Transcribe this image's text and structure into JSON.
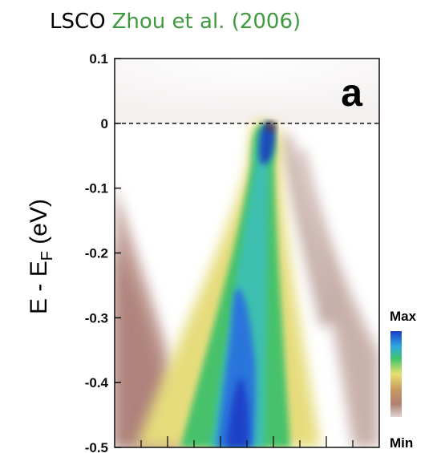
{
  "title": {
    "main": "LSCO",
    "sub": "Zhou et al. (2006)"
  },
  "chart_data": {
    "type": "heatmap",
    "ylabel": "E - E",
    "ylabel_sub": "F",
    "ylabel_unit": " (eV)",
    "ylim": [
      -0.5,
      0.1
    ],
    "y_ticks": [
      0.1,
      0,
      -0.1,
      -0.2,
      -0.3,
      -0.4,
      -0.5
    ],
    "y_tick_labels": [
      "0.1",
      "0",
      "-0.1",
      "-0.2",
      "-0.3",
      "-0.4",
      "-0.5"
    ],
    "x_tick_count": 10,
    "fermi_level": 0,
    "panel_label": "a",
    "colorbar": {
      "max_label": "Max",
      "min_label": "Min",
      "colors": [
        "#1a3cc8",
        "#2fa8e0",
        "#3fc66a",
        "#e8e070",
        "#c89a60",
        "#b08070",
        "#d8c8c8"
      ]
    },
    "dispersion": [
      {
        "e": 0.0,
        "k": 0.0
      },
      {
        "e": -0.05,
        "k": -0.01
      },
      {
        "e": -0.1,
        "k": -0.025
      },
      {
        "e": -0.15,
        "k": -0.045
      },
      {
        "e": -0.2,
        "k": -0.07
      },
      {
        "e": -0.25,
        "k": -0.09
      },
      {
        "e": -0.3,
        "k": -0.11
      },
      {
        "e": -0.35,
        "k": -0.125
      },
      {
        "e": -0.4,
        "k": -0.135
      },
      {
        "e": -0.45,
        "k": -0.145
      },
      {
        "e": -0.5,
        "k": -0.15
      }
    ]
  }
}
